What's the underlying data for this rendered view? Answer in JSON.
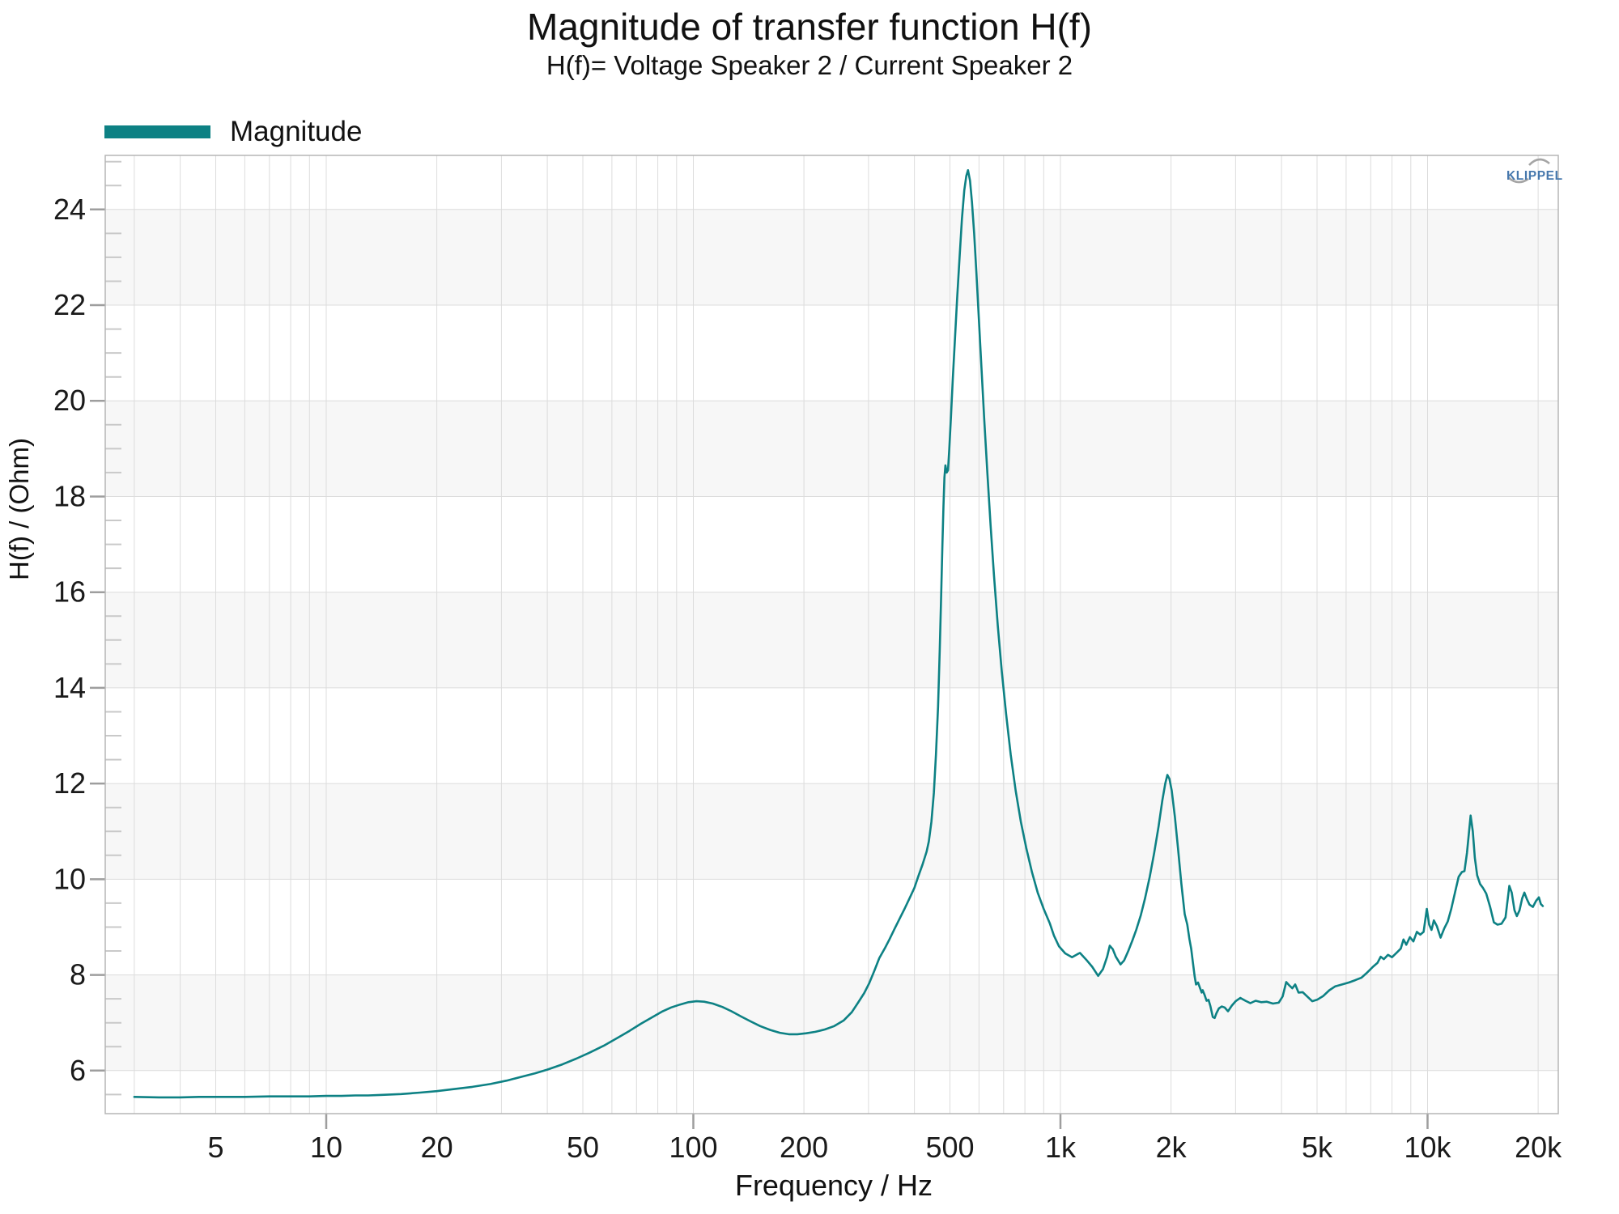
{
  "header": {
    "title": "Magnitude of transfer function H(f)",
    "subtitle": "H(f)= Voltage Speaker 2 / Current Speaker 2"
  },
  "legend": {
    "label": "Magnitude",
    "color": "#0d8184"
  },
  "watermark": {
    "text": "KLIPPEL",
    "text_color": "#4678ad",
    "arc_color": "#a5a5a5"
  },
  "chart_data": {
    "type": "line",
    "title": "Magnitude of transfer function H(f)",
    "subtitle": "H(f)= Voltage Speaker 2 / Current Speaker 2",
    "xlabel": "Frequency / Hz",
    "ylabel": "H(f) / (Ohm)",
    "x_scale": "log",
    "grid": true,
    "legend_position": "top-left",
    "xlim": [
      2.5,
      22700
    ],
    "ylim": [
      5.1,
      25.13
    ],
    "x_ticks": [
      {
        "value": 5,
        "label": "5"
      },
      {
        "value": 10,
        "label": "10"
      },
      {
        "value": 20,
        "label": "20"
      },
      {
        "value": 50,
        "label": "50"
      },
      {
        "value": 100,
        "label": "100"
      },
      {
        "value": 200,
        "label": "200"
      },
      {
        "value": 500,
        "label": "500"
      },
      {
        "value": 1000,
        "label": "1k"
      },
      {
        "value": 2000,
        "label": "2k"
      },
      {
        "value": 5000,
        "label": "5k"
      },
      {
        "value": 10000,
        "label": "10k"
      },
      {
        "value": 20000,
        "label": "20k"
      }
    ],
    "x_decade_ticks": [
      10,
      100,
      1000,
      10000
    ],
    "y_major_ticks": [
      6,
      8,
      10,
      12,
      14,
      16,
      18,
      20,
      22,
      24
    ],
    "y_minor_step": 0.5,
    "shaded_bands": [
      [
        22,
        24
      ],
      [
        18,
        20
      ],
      [
        14,
        16
      ],
      [
        10,
        12
      ],
      [
        6,
        8
      ]
    ],
    "colors": {
      "curve": "#0d8184",
      "grid": "#dcdcdc",
      "band": "#f7f7f7",
      "border": "#b5b5b5",
      "tick_major": "#9e9e9e",
      "tick_minor": "#c9c9c9",
      "text": "#1a1a1a"
    },
    "series": [
      {
        "name": "Magnitude",
        "color": "#0d8184",
        "points": [
          [
            3,
            5.45
          ],
          [
            3.5,
            5.44
          ],
          [
            4,
            5.44
          ],
          [
            4.5,
            5.45
          ],
          [
            5,
            5.45
          ],
          [
            6,
            5.45
          ],
          [
            7,
            5.46
          ],
          [
            8,
            5.46
          ],
          [
            9,
            5.46
          ],
          [
            10,
            5.47
          ],
          [
            11,
            5.47
          ],
          [
            12,
            5.48
          ],
          [
            13,
            5.48
          ],
          [
            14,
            5.49
          ],
          [
            16,
            5.51
          ],
          [
            18,
            5.54
          ],
          [
            20,
            5.57
          ],
          [
            22,
            5.61
          ],
          [
            25,
            5.66
          ],
          [
            28,
            5.72
          ],
          [
            31,
            5.79
          ],
          [
            34,
            5.87
          ],
          [
            37,
            5.94
          ],
          [
            40,
            6.02
          ],
          [
            44,
            6.13
          ],
          [
            48,
            6.25
          ],
          [
            52,
            6.37
          ],
          [
            57,
            6.52
          ],
          [
            62,
            6.68
          ],
          [
            67,
            6.83
          ],
          [
            72,
            6.98
          ],
          [
            77,
            7.11
          ],
          [
            82,
            7.23
          ],
          [
            87,
            7.32
          ],
          [
            92,
            7.38
          ],
          [
            97,
            7.43
          ],
          [
            102,
            7.45
          ],
          [
            107,
            7.44
          ],
          [
            113,
            7.4
          ],
          [
            120,
            7.33
          ],
          [
            127,
            7.24
          ],
          [
            135,
            7.13
          ],
          [
            143,
            7.03
          ],
          [
            152,
            6.93
          ],
          [
            162,
            6.85
          ],
          [
            172,
            6.79
          ],
          [
            182,
            6.76
          ],
          [
            192,
            6.76
          ],
          [
            203,
            6.78
          ],
          [
            215,
            6.81
          ],
          [
            228,
            6.86
          ],
          [
            242,
            6.93
          ],
          [
            257,
            7.05
          ],
          [
            270,
            7.22
          ],
          [
            281,
            7.42
          ],
          [
            292,
            7.62
          ],
          [
            301,
            7.82
          ],
          [
            311,
            8.08
          ],
          [
            321,
            8.35
          ],
          [
            333,
            8.57
          ],
          [
            342,
            8.74
          ],
          [
            353,
            8.96
          ],
          [
            366,
            9.2
          ],
          [
            376,
            9.38
          ],
          [
            389,
            9.62
          ],
          [
            400,
            9.82
          ],
          [
            410,
            10.06
          ],
          [
            421,
            10.31
          ],
          [
            432,
            10.58
          ],
          [
            438,
            10.79
          ],
          [
            445,
            11.2
          ],
          [
            452,
            11.8
          ],
          [
            458,
            12.6
          ],
          [
            464,
            13.6
          ],
          [
            469,
            14.8
          ],
          [
            473,
            15.9
          ],
          [
            477,
            17.0
          ],
          [
            480,
            17.8
          ],
          [
            483,
            18.4
          ],
          [
            486,
            18.65
          ],
          [
            490,
            18.5
          ],
          [
            494,
            18.55
          ],
          [
            498,
            19.0
          ],
          [
            503,
            19.65
          ],
          [
            509,
            20.45
          ],
          [
            516,
            21.3
          ],
          [
            523,
            22.15
          ],
          [
            531,
            23.0
          ],
          [
            539,
            23.8
          ],
          [
            547,
            24.4
          ],
          [
            554,
            24.7
          ],
          [
            560,
            24.82
          ],
          [
            567,
            24.6
          ],
          [
            574,
            24.15
          ],
          [
            582,
            23.5
          ],
          [
            590,
            22.7
          ],
          [
            599,
            21.75
          ],
          [
            609,
            20.7
          ],
          [
            620,
            19.6
          ],
          [
            632,
            18.5
          ],
          [
            645,
            17.4
          ],
          [
            659,
            16.35
          ],
          [
            675,
            15.3
          ],
          [
            692,
            14.35
          ],
          [
            711,
            13.45
          ],
          [
            732,
            12.6
          ],
          [
            755,
            11.85
          ],
          [
            780,
            11.2
          ],
          [
            807,
            10.65
          ],
          [
            836,
            10.15
          ],
          [
            867,
            9.72
          ],
          [
            900,
            9.38
          ],
          [
            935,
            9.08
          ],
          [
            960,
            8.82
          ],
          [
            990,
            8.6
          ],
          [
            1030,
            8.45
          ],
          [
            1075,
            8.37
          ],
          [
            1110,
            8.43
          ],
          [
            1130,
            8.46
          ],
          [
            1175,
            8.32
          ],
          [
            1220,
            8.17
          ],
          [
            1267,
            7.98
          ],
          [
            1305,
            8.12
          ],
          [
            1340,
            8.38
          ],
          [
            1362,
            8.61
          ],
          [
            1388,
            8.54
          ],
          [
            1415,
            8.38
          ],
          [
            1457,
            8.22
          ],
          [
            1490,
            8.3
          ],
          [
            1530,
            8.5
          ],
          [
            1570,
            8.72
          ],
          [
            1610,
            8.95
          ],
          [
            1655,
            9.25
          ],
          [
            1700,
            9.6
          ],
          [
            1750,
            10.05
          ],
          [
            1800,
            10.55
          ],
          [
            1850,
            11.1
          ],
          [
            1895,
            11.65
          ],
          [
            1930,
            12.0
          ],
          [
            1955,
            12.18
          ],
          [
            1980,
            12.1
          ],
          [
            2010,
            11.85
          ],
          [
            2050,
            11.3
          ],
          [
            2090,
            10.65
          ],
          [
            2135,
            9.9
          ],
          [
            2180,
            9.27
          ],
          [
            2215,
            9.05
          ],
          [
            2245,
            8.75
          ],
          [
            2270,
            8.55
          ],
          [
            2295,
            8.25
          ],
          [
            2320,
            7.97
          ],
          [
            2340,
            7.8
          ],
          [
            2370,
            7.84
          ],
          [
            2400,
            7.72
          ],
          [
            2425,
            7.63
          ],
          [
            2440,
            7.68
          ],
          [
            2470,
            7.58
          ],
          [
            2500,
            7.46
          ],
          [
            2530,
            7.48
          ],
          [
            2560,
            7.35
          ],
          [
            2600,
            7.12
          ],
          [
            2630,
            7.1
          ],
          [
            2660,
            7.2
          ],
          [
            2700,
            7.3
          ],
          [
            2750,
            7.34
          ],
          [
            2800,
            7.32
          ],
          [
            2860,
            7.24
          ],
          [
            2930,
            7.36
          ],
          [
            3000,
            7.45
          ],
          [
            3090,
            7.52
          ],
          [
            3190,
            7.46
          ],
          [
            3290,
            7.41
          ],
          [
            3400,
            7.46
          ],
          [
            3520,
            7.43
          ],
          [
            3650,
            7.44
          ],
          [
            3790,
            7.4
          ],
          [
            3930,
            7.42
          ],
          [
            4030,
            7.55
          ],
          [
            4120,
            7.85
          ],
          [
            4200,
            7.78
          ],
          [
            4280,
            7.72
          ],
          [
            4360,
            7.8
          ],
          [
            4450,
            7.63
          ],
          [
            4570,
            7.64
          ],
          [
            4700,
            7.55
          ],
          [
            4850,
            7.45
          ],
          [
            5000,
            7.48
          ],
          [
            5200,
            7.56
          ],
          [
            5400,
            7.68
          ],
          [
            5600,
            7.76
          ],
          [
            5850,
            7.8
          ],
          [
            6100,
            7.84
          ],
          [
            6350,
            7.89
          ],
          [
            6600,
            7.94
          ],
          [
            6850,
            8.05
          ],
          [
            7100,
            8.17
          ],
          [
            7300,
            8.25
          ],
          [
            7450,
            8.38
          ],
          [
            7600,
            8.33
          ],
          [
            7800,
            8.42
          ],
          [
            8000,
            8.37
          ],
          [
            8250,
            8.47
          ],
          [
            8450,
            8.55
          ],
          [
            8600,
            8.74
          ],
          [
            8750,
            8.63
          ],
          [
            8950,
            8.79
          ],
          [
            9150,
            8.7
          ],
          [
            9350,
            8.9
          ],
          [
            9550,
            8.84
          ],
          [
            9750,
            8.9
          ],
          [
            9950,
            9.38
          ],
          [
            10100,
            9.05
          ],
          [
            10250,
            8.94
          ],
          [
            10400,
            9.14
          ],
          [
            10600,
            9.02
          ],
          [
            10850,
            8.78
          ],
          [
            11100,
            8.97
          ],
          [
            11350,
            9.12
          ],
          [
            11600,
            9.38
          ],
          [
            11900,
            9.75
          ],
          [
            12150,
            10.05
          ],
          [
            12400,
            10.15
          ],
          [
            12600,
            10.17
          ],
          [
            12800,
            10.55
          ],
          [
            12950,
            10.95
          ],
          [
            13100,
            11.33
          ],
          [
            13280,
            11.0
          ],
          [
            13450,
            10.45
          ],
          [
            13650,
            10.08
          ],
          [
            13900,
            9.9
          ],
          [
            14150,
            9.82
          ],
          [
            14450,
            9.7
          ],
          [
            14800,
            9.42
          ],
          [
            15150,
            9.1
          ],
          [
            15500,
            9.05
          ],
          [
            15900,
            9.07
          ],
          [
            16300,
            9.2
          ],
          [
            16700,
            9.86
          ],
          [
            16950,
            9.72
          ],
          [
            17250,
            9.35
          ],
          [
            17500,
            9.23
          ],
          [
            17800,
            9.35
          ],
          [
            18100,
            9.6
          ],
          [
            18350,
            9.72
          ],
          [
            18650,
            9.58
          ],
          [
            18950,
            9.47
          ],
          [
            19350,
            9.42
          ],
          [
            19750,
            9.55
          ],
          [
            20100,
            9.62
          ],
          [
            20350,
            9.48
          ],
          [
            20600,
            9.44
          ]
        ]
      }
    ]
  }
}
